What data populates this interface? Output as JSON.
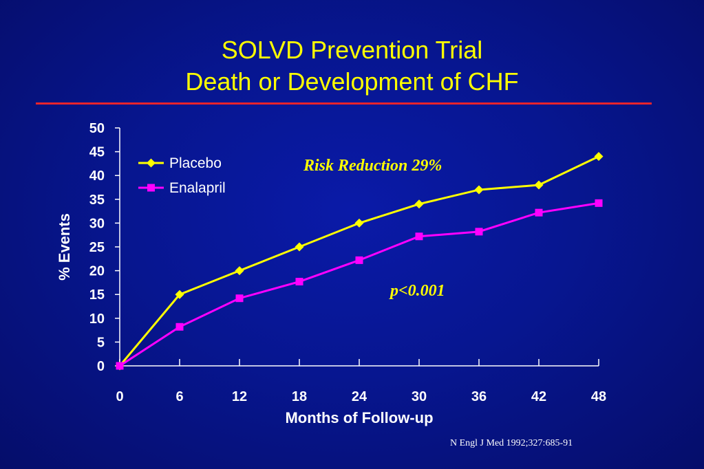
{
  "title_line1": "SOLVD Prevention Trial",
  "title_line2": "Death or Development of CHF",
  "colors": {
    "accent_rule": "#e8242c",
    "title": "#ffff00",
    "placebo": "#ffff00",
    "enalapril": "#ff00ff",
    "axis": "#ffffff"
  },
  "annotations": {
    "risk_reduction": "Risk Reduction 29%",
    "p_value": "p<0.001"
  },
  "citation": "N Engl J Med 1992;327:685-91",
  "chart_data": {
    "type": "line",
    "x": [
      0,
      6,
      12,
      18,
      24,
      30,
      36,
      42,
      48
    ],
    "series": [
      {
        "name": "Placebo",
        "values": [
          0,
          15,
          20,
          25,
          30,
          34,
          37,
          38,
          44
        ],
        "marker": "diamond",
        "color": "#ffff00"
      },
      {
        "name": "Enalapril",
        "values": [
          0,
          8.2,
          14.2,
          17.7,
          22.2,
          27.2,
          28.2,
          32.2,
          34.2
        ],
        "marker": "square",
        "color": "#ff00ff"
      }
    ],
    "xlabel": "Months of Follow-up",
    "ylabel": "% Events",
    "xlim": [
      0,
      48
    ],
    "ylim": [
      0,
      50
    ],
    "xticks": [
      0,
      6,
      12,
      18,
      24,
      30,
      36,
      42,
      48
    ],
    "yticks": [
      0,
      5,
      10,
      15,
      20,
      25,
      30,
      35,
      40,
      45,
      50
    ],
    "grid": false,
    "legend_position": "top-left"
  }
}
